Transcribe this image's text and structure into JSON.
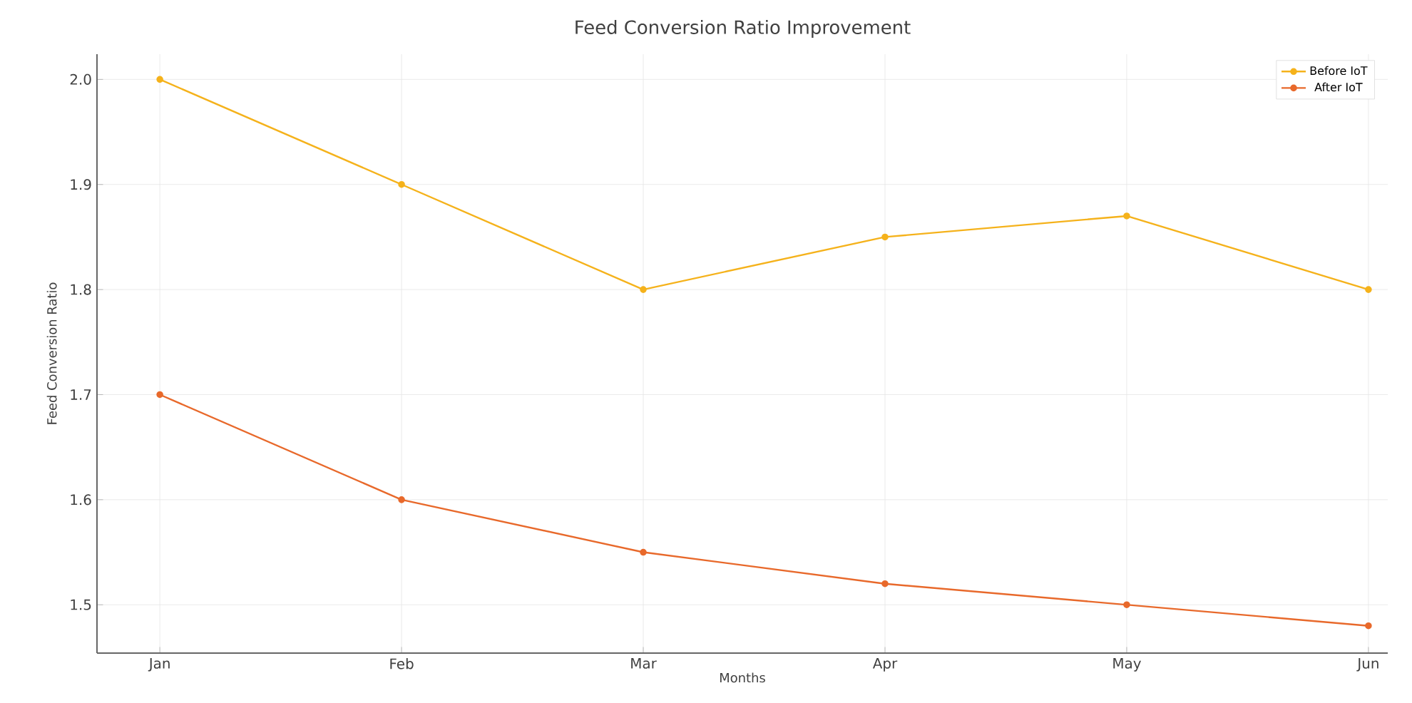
{
  "chart_data": {
    "type": "line",
    "title": "Feed Conversion Ratio Improvement",
    "xlabel": "Months",
    "ylabel": "Feed Conversion Ratio",
    "categories": [
      "Jan",
      "Feb",
      "Mar",
      "Apr",
      "May",
      "Jun"
    ],
    "series": [
      {
        "name": "Before IoT",
        "color": "#f5b21b",
        "values": [
          2.0,
          1.9,
          1.8,
          1.85,
          1.87,
          1.8
        ]
      },
      {
        "name": "After IoT",
        "color": "#e8692b",
        "values": [
          1.7,
          1.6,
          1.55,
          1.52,
          1.5,
          1.48
        ]
      }
    ],
    "ylim": [
      1.454,
      2.024
    ],
    "yticks": [
      1.5,
      1.6,
      1.7,
      1.8,
      1.9,
      {
        "value": 2.0,
        "label": "2.0"
      }
    ],
    "grid": true,
    "legend": "top right",
    "marker": "circle",
    "line_style": "solid"
  }
}
